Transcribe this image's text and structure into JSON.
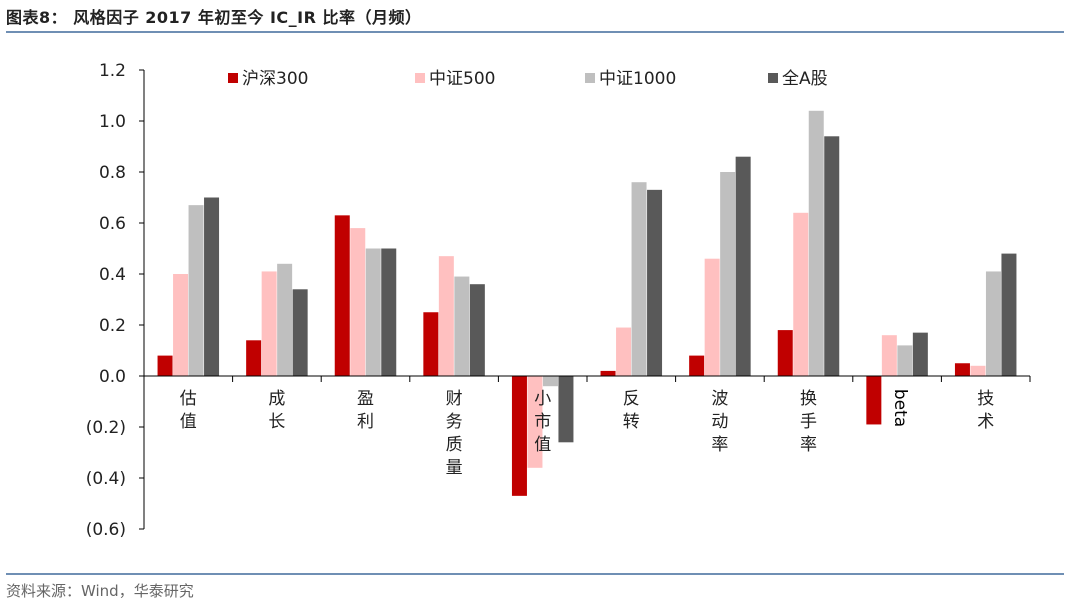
{
  "header": {
    "title": "图表8：   风格因子 2017 年初至今 IC_IR 比率（月频）"
  },
  "footer": {
    "source": "资料来源：Wind，华泰研究"
  },
  "chart_data": {
    "type": "bar",
    "categories": [
      "估值",
      "成长",
      "盈利",
      "财务质量",
      "小市值",
      "反转",
      "波动率",
      "换手率",
      "beta",
      "技术"
    ],
    "series": [
      {
        "name": "沪深300",
        "color": "#c00000",
        "values": [
          0.08,
          0.14,
          0.63,
          0.25,
          -0.47,
          0.02,
          0.08,
          0.18,
          -0.19,
          0.05
        ]
      },
      {
        "name": "中证500",
        "color": "#ffc0c0",
        "values": [
          0.4,
          0.41,
          0.58,
          0.47,
          -0.36,
          0.19,
          0.46,
          0.64,
          0.16,
          0.04
        ]
      },
      {
        "name": "中证1000",
        "color": "#bfbfbf",
        "values": [
          0.67,
          0.44,
          0.5,
          0.39,
          -0.04,
          0.76,
          0.8,
          1.04,
          0.12,
          0.41
        ]
      },
      {
        "name": "全A股",
        "color": "#595959",
        "values": [
          0.7,
          0.34,
          0.5,
          0.36,
          -0.26,
          0.73,
          0.86,
          0.94,
          0.17,
          0.48
        ]
      }
    ],
    "yticks": [
      "1.2",
      "1.0",
      "0.8",
      "0.6",
      "0.4",
      "0.2",
      "0.0",
      "(0.2)",
      "(0.4)",
      "(0.6)"
    ],
    "ylim": [
      -0.6,
      1.2
    ],
    "legend_position": "top",
    "grid": false
  }
}
